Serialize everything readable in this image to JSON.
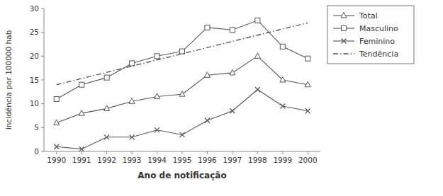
{
  "chart_data": {
    "type": "line",
    "x": [
      1990,
      1991,
      1992,
      1993,
      1994,
      1995,
      1996,
      1997,
      1998,
      1999,
      2000
    ],
    "xlabel": "Ano de notificação",
    "ylabel": "Incidência por 100000 hab",
    "xlim": [
      1989.5,
      2000.5
    ],
    "ylim": [
      0,
      30
    ],
    "xticks": [
      1990,
      1991,
      1992,
      1993,
      1994,
      1995,
      1996,
      1997,
      1998,
      1999,
      2000
    ],
    "yticks": [
      0,
      5,
      10,
      15,
      20,
      25,
      30
    ],
    "color": "#555555",
    "grid": false,
    "legend": "right",
    "series": [
      {
        "name": "Total",
        "marker": "triangle",
        "line_style": "solid",
        "values": [
          6.0,
          8.0,
          9.0,
          10.5,
          11.5,
          12.0,
          16.0,
          16.5,
          20.0,
          15.0,
          14.0
        ]
      },
      {
        "name": "Masculino",
        "marker": "square",
        "line_style": "solid",
        "values": [
          11.0,
          14.0,
          15.5,
          18.5,
          20.0,
          21.0,
          26.0,
          25.5,
          27.5,
          22.0,
          19.5
        ]
      },
      {
        "name": "Feminino",
        "marker": "x",
        "line_style": "solid",
        "values": [
          1.0,
          0.5,
          3.0,
          3.0,
          4.5,
          3.5,
          6.5,
          8.5,
          13.0,
          9.5,
          8.5
        ]
      },
      {
        "name": "Tendência",
        "marker": "none",
        "line_style": "dashdot",
        "x": [
          1990,
          2000
        ],
        "values": [
          14.0,
          27.0
        ]
      }
    ]
  }
}
